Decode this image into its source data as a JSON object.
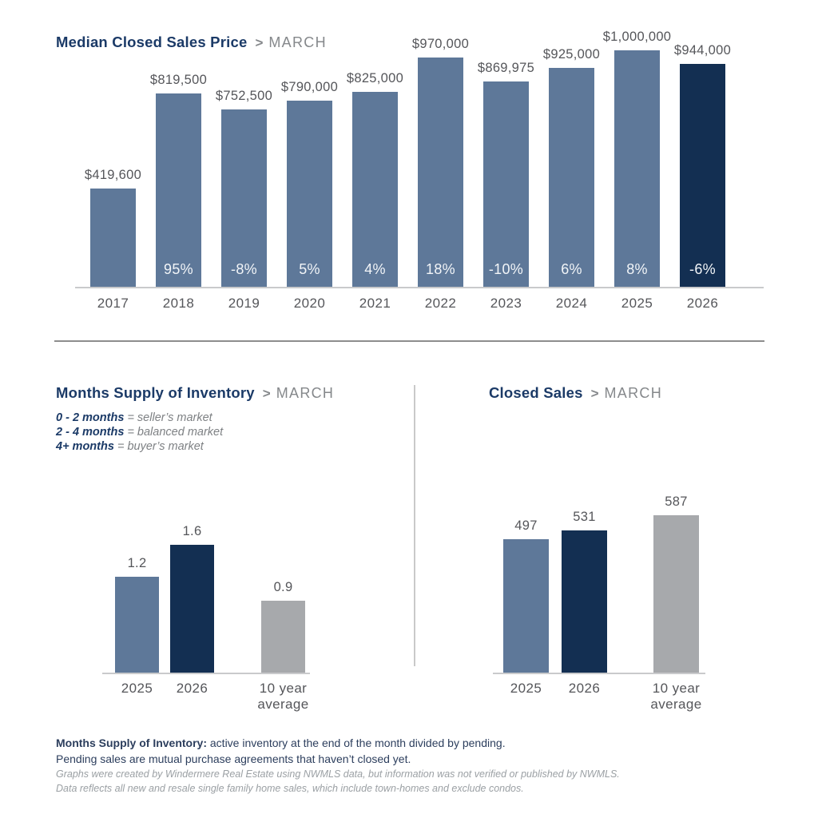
{
  "colors": {
    "bar_blue": "#5e7899",
    "bar_navy": "#132f52",
    "bar_gray": "#a7a9ac",
    "title_navy": "#1b3a67",
    "subtitle_gray": "#85888b",
    "value_label_gray": "#55565a",
    "pct_label_white": "#f2f5f8",
    "axis_gray": "#c9cacc",
    "divider_gray": "#8d8d8d",
    "footer_navy": "#2c3e5d",
    "fineprint_gray": "#9ba0a4"
  },
  "median_price_section": {
    "title": "Median Closed Sales Price",
    "separator": ">",
    "month": "MARCH"
  },
  "supply_section": {
    "title": "Months Supply of Inventory",
    "separator": ">",
    "month": "MARCH",
    "legend": [
      {
        "range": "0 - 2 months",
        "meaning": "= seller’s market"
      },
      {
        "range": "2 - 4 months",
        "meaning": "= balanced market"
      },
      {
        "range": "4+ months",
        "meaning": "= buyer’s market"
      }
    ]
  },
  "closed_sales_section": {
    "title": "Closed Sales",
    "separator": ">",
    "month": "MARCH"
  },
  "footer": {
    "definition_label": "Months Supply of Inventory:",
    "definition_text": " active inventory at the end of the month divided by pending.",
    "definition_line2": "Pending sales are mutual purchase agreements that haven’t closed yet.",
    "disclaimer_line1": "Graphs were created by Windermere Real Estate using NWMLS data, but information was not verified or published by NWMLS.",
    "disclaimer_line2": "Data reflects all new and resale single family home sales, which include town-homes and exclude condos."
  },
  "chart_data": [
    {
      "id": "median-price",
      "type": "bar",
      "title": "Median Closed Sales Price > MARCH",
      "categories": [
        "2017",
        "2018",
        "2019",
        "2020",
        "2021",
        "2022",
        "2023",
        "2024",
        "2025",
        "2026"
      ],
      "values": [
        419600,
        819500,
        752500,
        790000,
        825000,
        970000,
        869975,
        925000,
        1000000,
        944000
      ],
      "value_labels": [
        "$419,600",
        "$819,500",
        "$752,500",
        "$790,000",
        "$825,000",
        "$970,000",
        "$869,975",
        "$925,000",
        "$1,000,000",
        "$944,000"
      ],
      "pct_labels": [
        "",
        "95%",
        "-8%",
        "5%",
        "4%",
        "18%",
        "-10%",
        "6%",
        "8%",
        "-6%"
      ],
      "bar_colors": [
        "blue",
        "blue",
        "blue",
        "blue",
        "blue",
        "blue",
        "blue",
        "blue",
        "blue",
        "navy"
      ],
      "xlabel": "",
      "ylabel": "",
      "ylim": [
        0,
        1000000
      ],
      "grid": false,
      "legend_position": "none"
    },
    {
      "id": "months-supply",
      "type": "bar",
      "title": "Months Supply of Inventory > MARCH",
      "categories": [
        "2025",
        "2026",
        "10 year\naverage"
      ],
      "values": [
        1.2,
        1.6,
        0.9
      ],
      "value_labels": [
        "1.2",
        "1.6",
        "0.9"
      ],
      "pct_labels": [
        "",
        "",
        ""
      ],
      "bar_colors": [
        "blue",
        "navy",
        "gray"
      ],
      "xlabel": "",
      "ylabel": "",
      "ylim": [
        0,
        2
      ],
      "grid": false,
      "legend_position": "none"
    },
    {
      "id": "closed-sales",
      "type": "bar",
      "title": "Closed Sales > MARCH",
      "categories": [
        "2025",
        "2026",
        "10 year\naverage"
      ],
      "values": [
        497,
        531,
        587
      ],
      "value_labels": [
        "497",
        "531",
        "587"
      ],
      "pct_labels": [
        "",
        "",
        ""
      ],
      "bar_colors": [
        "blue",
        "navy",
        "gray"
      ],
      "xlabel": "",
      "ylabel": "",
      "ylim": [
        0,
        650
      ],
      "grid": false,
      "legend_position": "none"
    }
  ]
}
